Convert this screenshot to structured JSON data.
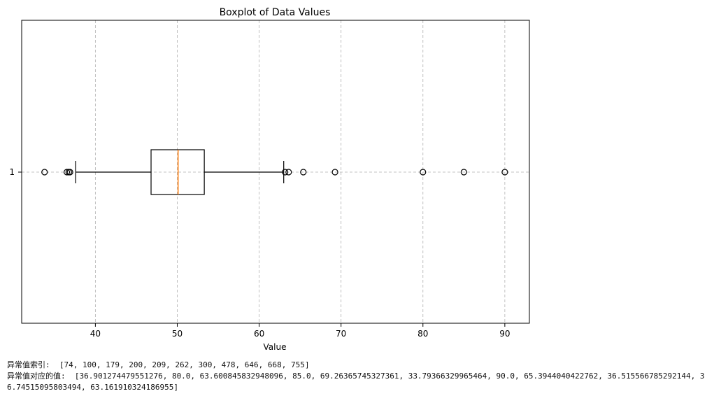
{
  "chart_data": {
    "type": "boxplot",
    "orientation": "horizontal",
    "title": "Boxplot of Data Values",
    "xlabel": "Value",
    "ylabel": "",
    "xlim": [
      31,
      93
    ],
    "x_ticks": [
      40,
      50,
      60,
      70,
      80,
      90
    ],
    "x_tick_labels": [
      "40",
      "50",
      "60",
      "70",
      "80",
      "90"
    ],
    "y_tick_labels": [
      "1"
    ],
    "grid": true,
    "series": [
      {
        "name": "1",
        "whisker_low": 37.6,
        "q1": 46.8,
        "median": 50.1,
        "q3": 53.3,
        "whisker_high": 63.0,
        "outliers": [
          33.79366329965464,
          36.515566785292144,
          36.74515095803494,
          36.901274479551276,
          63.161910324186955,
          63.600845832948096,
          65.3944040422762,
          69.26365745327361,
          80.0,
          85.0,
          90.0
        ]
      }
    ],
    "colors": {
      "median": "#ff7f0e",
      "box": "#000000",
      "grid": "#b0b0b0"
    }
  },
  "console": {
    "line1": "异常值索引:  [74, 100, 179, 200, 209, 262, 300, 478, 646, 668, 755]",
    "line2a": "异常值对应的值:  [36.901274479551276, 80.0, 63.600845832948096, 85.0, 69.26365745327361, 33.79366329965464, 90.0, 65.3944040422762, 36.515566785292144, 3",
    "line2b": "6.74515095803494, 63.161910324186955]"
  }
}
